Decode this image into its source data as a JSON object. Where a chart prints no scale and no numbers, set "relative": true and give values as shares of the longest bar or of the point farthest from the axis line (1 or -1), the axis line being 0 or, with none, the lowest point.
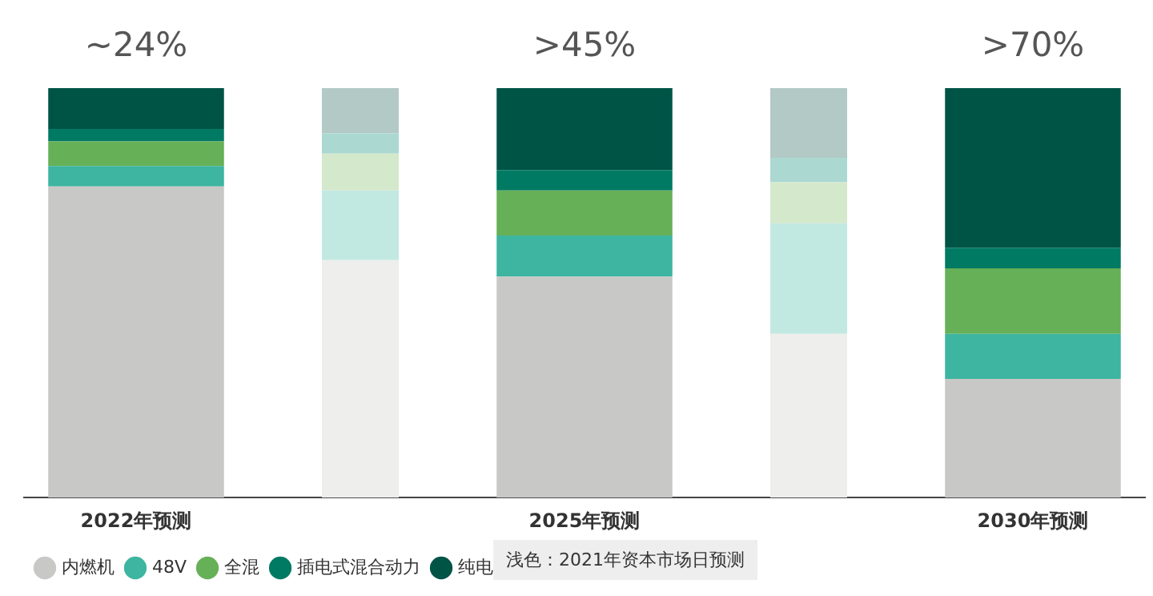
{
  "chart_data": {
    "type": "bar",
    "stacked": true,
    "relative": true,
    "legend": "bottom",
    "grid": false,
    "categories": [
      "2022年预测",
      null,
      "2025年预测",
      null,
      "2030年预测"
    ],
    "series": [
      {
        "color": "#eeeeec",
        "values": [
          null,
          0.58,
          null,
          0.4,
          null
        ]
      },
      {
        "color": "#c2e8e2",
        "values": [
          null,
          0.17,
          null,
          0.27,
          null
        ]
      },
      {
        "color": "#d4e8cc",
        "values": [
          null,
          0.09,
          null,
          0.1,
          null
        ]
      },
      {
        "color": "#acd8d2",
        "values": [
          null,
          0.05,
          null,
          0.06,
          null
        ]
      },
      {
        "color": "#b3c9c6",
        "values": [
          null,
          0.11,
          null,
          0.17,
          null
        ]
      },
      {
        "name": "内燃机",
        "color": "#c8c8c6",
        "values": [
          0.76,
          null,
          0.54,
          null,
          0.29
        ]
      },
      {
        "name": "48V",
        "color": "#3db5a0",
        "values": [
          0.05,
          null,
          0.1,
          null,
          0.11
        ]
      },
      {
        "name": "全混",
        "color": "#66b058",
        "values": [
          0.06,
          null,
          0.11,
          null,
          0.16
        ]
      },
      {
        "name": "插电式混合动力",
        "color": "#007a63",
        "values": [
          0.03,
          null,
          0.05,
          null,
          0.05
        ]
      },
      {
        "name": "纯电",
        "color": "#005446",
        "values": [
          0.1,
          null,
          0.2,
          null,
          0.39
        ]
      }
    ],
    "annotations": [
      "~24%",
      ">45%",
      ">70%",
      "浅色：2021年资本市场日预测"
    ]
  }
}
